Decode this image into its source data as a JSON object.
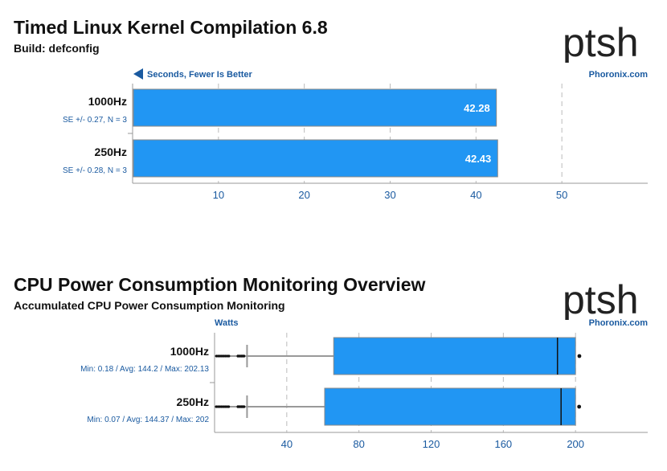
{
  "logo_text": "ptsh",
  "chart_data": [
    {
      "type": "bar",
      "title": "Timed Linux Kernel Compilation 6.8",
      "subtitle": "Build: defconfig",
      "measure_label": "Seconds, Fewer Is Better",
      "source": "Phoronix.com",
      "categories": [
        "1000Hz",
        "250Hz"
      ],
      "values": [
        42.28,
        42.43
      ],
      "value_labels": [
        "42.28",
        "42.43"
      ],
      "annotations": [
        "SE +/- 0.27, N = 3",
        "SE +/- 0.28, N = 3"
      ],
      "xlim": [
        0,
        60
      ],
      "xticks": [
        10,
        20,
        30,
        40,
        50
      ],
      "bar_color": "#2196f3"
    },
    {
      "type": "box",
      "title": "CPU Power Consumption Monitoring Overview",
      "subtitle": "Accumulated CPU Power Consumption Monitoring",
      "measure_label": "Watts",
      "source": "Phoronix.com",
      "xlim": [
        0,
        240
      ],
      "xticks": [
        40,
        80,
        120,
        160,
        200
      ],
      "box_color": "#2196f3",
      "series": [
        {
          "name": "1000Hz",
          "annotation": "Min: 0.18 / Avg: 144.2 / Max: 202.13",
          "min": 0.18,
          "whisker_low": 18,
          "q1": 66,
          "median": 190,
          "q3": 200,
          "max": 202.13
        },
        {
          "name": "250Hz",
          "annotation": "Min: 0.07 / Avg: 144.37 / Max: 202",
          "min": 0.07,
          "whisker_low": 18,
          "q1": 61,
          "median": 192,
          "q3": 200,
          "max": 202
        }
      ]
    }
  ]
}
